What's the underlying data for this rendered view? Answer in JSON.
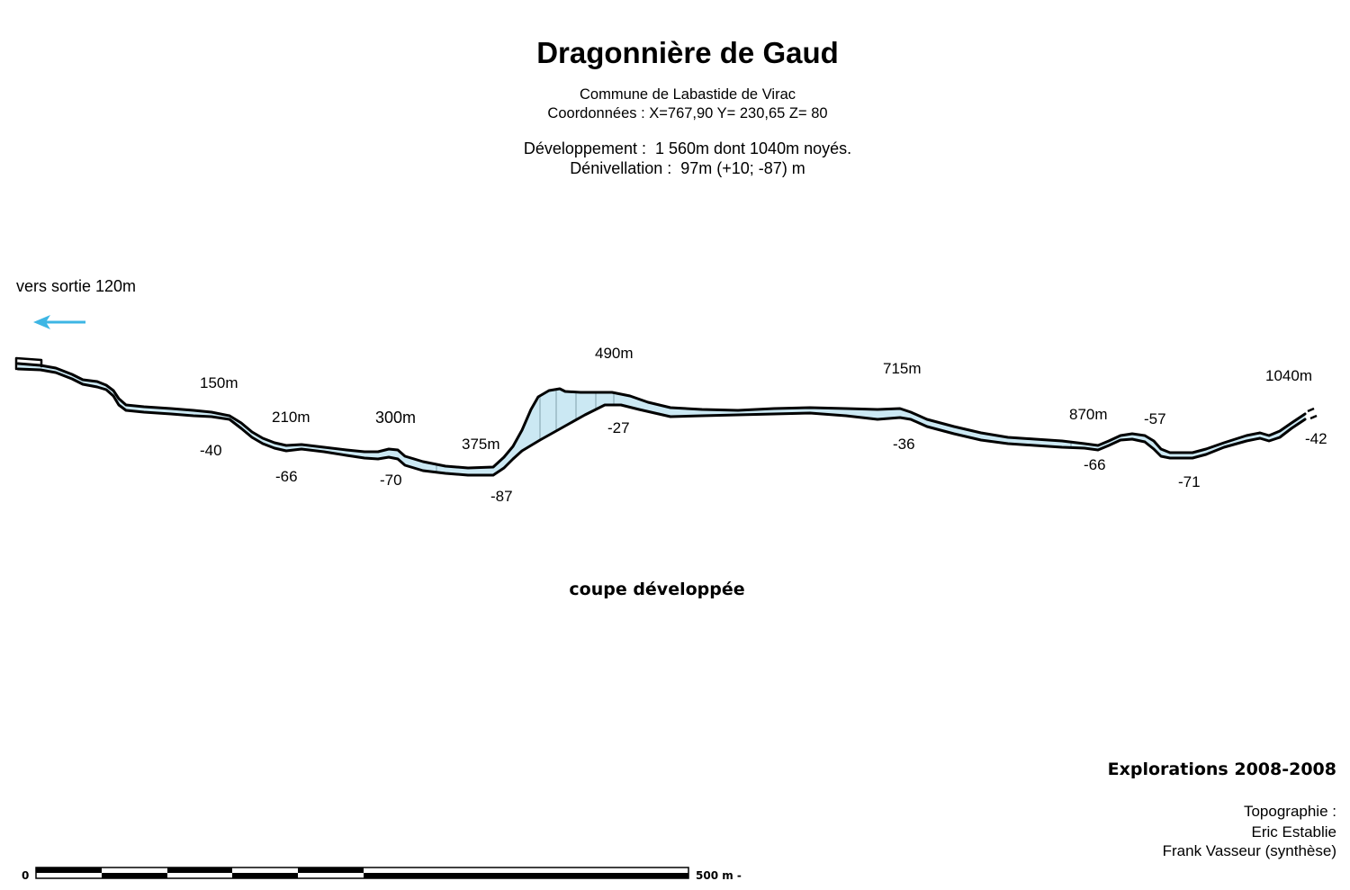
{
  "title": "Dragonnière de Gaud",
  "header": {
    "commune": "Commune de Labastide de Virac",
    "coordinates": "Coordonnées : X=767,90 Y= 230,65 Z= 80",
    "development": "Développement :  1 560m dont 1040m noyés.",
    "denivellation": "Dénivellation :  97m (+10; -87) m"
  },
  "exit": {
    "label": "vers sortie 120m",
    "arrow_icon": "arrow-left-icon"
  },
  "profile": {
    "distances": [
      "150m",
      "210m",
      "300m",
      "375m",
      "490m",
      "715m",
      "870m",
      "1040m"
    ],
    "depths": [
      "-40",
      "-66",
      "-70",
      "-87",
      "-27",
      "-36",
      "-66",
      "-57",
      "-71",
      "-42"
    ],
    "caption": "coupe développée"
  },
  "credits": {
    "explorations": "Explorations 2008-2008",
    "topography_heading": "Topographie :",
    "authors": [
      "Eric Establie",
      "Frank Vasseur (synthèse)"
    ]
  },
  "scale_bar": {
    "start_label": "0",
    "end_label": "500 m -"
  },
  "colors": {
    "water": "#cbe8f3",
    "arrow": "#3db6e4",
    "outline": "#000000"
  }
}
